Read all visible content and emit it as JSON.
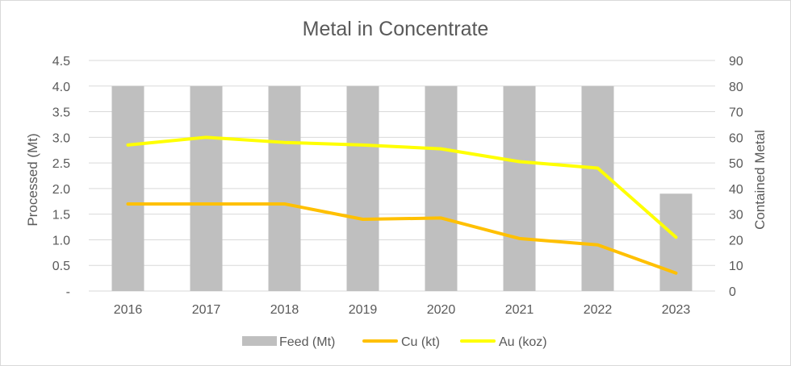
{
  "chart_data": {
    "type": "bar",
    "title": "Metal in Concentrate",
    "categories": [
      "2016",
      "2017",
      "2018",
      "2019",
      "2020",
      "2021",
      "2022",
      "2023"
    ],
    "y_left": {
      "label": "Processed (Mt)",
      "range": [
        0,
        4.5
      ],
      "ticks": [
        "-",
        "0.5",
        "1.0",
        "1.5",
        "2.0",
        "2.5",
        "3.0",
        "3.5",
        "4.0",
        "4.5"
      ]
    },
    "y_right": {
      "label": "Contained Metal",
      "range": [
        0,
        90
      ],
      "ticks": [
        "0",
        "10",
        "20",
        "30",
        "40",
        "50",
        "60",
        "70",
        "80",
        "90"
      ]
    },
    "grid": true,
    "legend_position": "bottom",
    "series": [
      {
        "name": "Feed (Mt)",
        "kind": "bar",
        "axis": "left",
        "color": "#bfbfbf",
        "values": [
          4.0,
          4.0,
          4.0,
          4.0,
          4.0,
          4.0,
          4.0,
          1.9
        ]
      },
      {
        "name": "Cu (kt)",
        "kind": "line",
        "axis": "right",
        "color": "#ffc000",
        "values": [
          34,
          34,
          34,
          28,
          28.5,
          20.5,
          18,
          7
        ]
      },
      {
        "name": "Au (koz)",
        "kind": "line",
        "axis": "right",
        "color": "#ffff00",
        "values": [
          57,
          60,
          58,
          57,
          55.5,
          50.5,
          48,
          21
        ]
      }
    ]
  }
}
